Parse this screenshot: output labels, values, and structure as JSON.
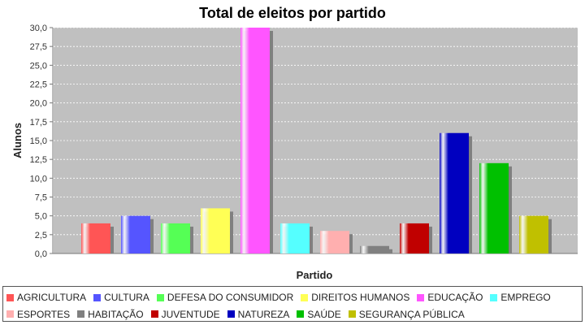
{
  "chart_data": {
    "type": "bar",
    "title": "Total de eleitos por partido",
    "xlabel": "Partido",
    "ylabel": "Alunos",
    "ylim": [
      0,
      30
    ],
    "ytick_step": 2.5,
    "yticks": [
      "0,0",
      "2,5",
      "5,0",
      "7,5",
      "10,0",
      "12,5",
      "15,0",
      "17,5",
      "20,0",
      "22,5",
      "25,0",
      "27,5",
      "30,0"
    ],
    "grid": true,
    "legend_position": "bottom",
    "series": [
      {
        "name": "AGRICULTURA",
        "value": 4,
        "color": "#ff5555"
      },
      {
        "name": "CULTURA",
        "value": 5,
        "color": "#5555ff"
      },
      {
        "name": "DEFESA DO CONSUMIDOR",
        "value": 4,
        "color": "#55ff55"
      },
      {
        "name": "DIREITOS HUMANOS",
        "value": 6,
        "color": "#ffff55"
      },
      {
        "name": "EDUCAÇÃO",
        "value": 30,
        "color": "#ff55ff"
      },
      {
        "name": "EMPREGO",
        "value": 4,
        "color": "#55ffff"
      },
      {
        "name": "ESPORTES",
        "value": 3,
        "color": "#ffafaf"
      },
      {
        "name": "HABITAÇÃO",
        "value": 1,
        "color": "#808080"
      },
      {
        "name": "JUVENTUDE",
        "value": 4,
        "color": "#c00000"
      },
      {
        "name": "NATUREZA",
        "value": 16,
        "color": "#0000c0"
      },
      {
        "name": "SAÚDE",
        "value": 12,
        "color": "#00c000"
      },
      {
        "name": "SEGURANÇA PÚBLICA",
        "value": 5,
        "color": "#c0c000"
      }
    ]
  },
  "colors": {
    "plot_background": "#c0c0c0",
    "gridline": "#ffffff"
  }
}
